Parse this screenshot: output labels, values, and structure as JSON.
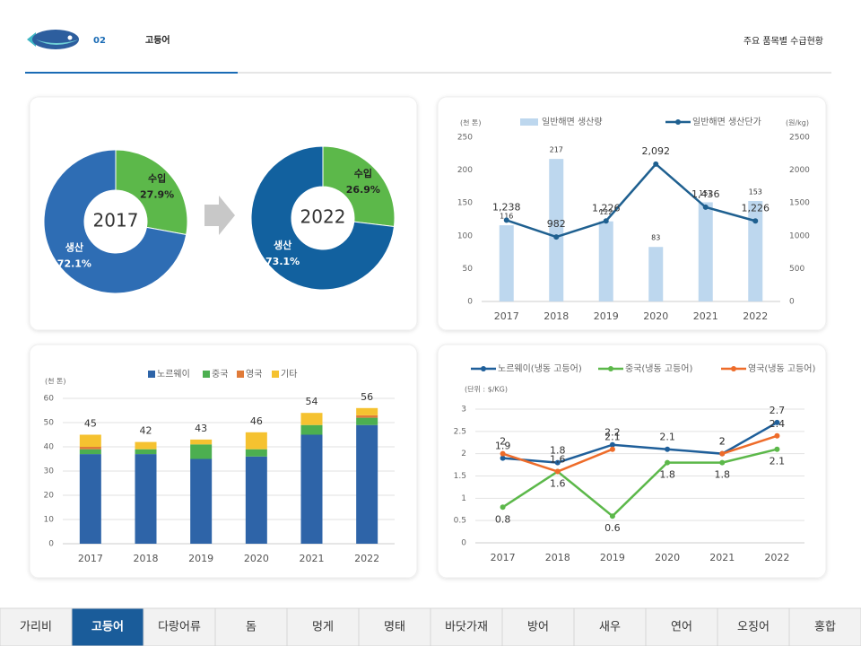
{
  "header": {
    "number": "02",
    "title": "고등어",
    "subtitle": "주요 품목별 수급현황"
  },
  "chart_data": [
    {
      "type": "pie",
      "center_label": "2017",
      "categories": [
        "수입",
        "생산"
      ],
      "values": [
        27.9,
        72.1
      ],
      "value_labels": [
        "27.9%",
        "72.1%"
      ],
      "colors": [
        "#5cb84a",
        "#2e6db4"
      ]
    },
    {
      "type": "pie",
      "center_label": "2022",
      "categories": [
        "수입",
        "생산"
      ],
      "values": [
        26.9,
        73.1
      ],
      "value_labels": [
        "26.9%",
        "73.1%"
      ],
      "colors": [
        "#5cb84a",
        "#12619f"
      ]
    },
    {
      "type": "combo",
      "y_unit": "(천 톤)",
      "y2_unit": "(원/kg)",
      "categories": [
        "2017",
        "2018",
        "2019",
        "2020",
        "2021",
        "2022"
      ],
      "series": [
        {
          "name": "일반해면 생산량",
          "kind": "bar",
          "color": "#bdd7ee",
          "values": [
            116,
            217,
            122,
            83,
            151,
            153
          ]
        },
        {
          "name": "일반해면 생산단가",
          "kind": "line",
          "axis": "y2",
          "color": "#1f6090",
          "values": [
            1238,
            982,
            1226,
            2092,
            1436,
            1226
          ],
          "value_labels": [
            "1,238",
            "982",
            "1,226",
            "2,092",
            "1,436",
            "1,226"
          ]
        }
      ],
      "ylim": [
        0,
        250
      ],
      "yticks": [
        0,
        50,
        100,
        150,
        200,
        250
      ],
      "y2lim": [
        0,
        2500
      ],
      "y2ticks": [
        0,
        500,
        1000,
        1500,
        2000,
        2500
      ],
      "grid": false
    },
    {
      "type": "stacked_bar",
      "y_unit": "(천 톤)",
      "categories": [
        "2017",
        "2018",
        "2019",
        "2020",
        "2021",
        "2022"
      ],
      "series": [
        {
          "name": "노르웨이",
          "color": "#2e64a8",
          "values": [
            37,
            37,
            35,
            36,
            45,
            49
          ]
        },
        {
          "name": "중국",
          "color": "#4caf50",
          "values": [
            2,
            2,
            6,
            3,
            4,
            3
          ]
        },
        {
          "name": "영국",
          "color": "#e07b39",
          "values": [
            1,
            0,
            0,
            0,
            0,
            1
          ]
        },
        {
          "name": "기타",
          "color": "#f5c230",
          "values": [
            5,
            3,
            2,
            7,
            5,
            3
          ]
        }
      ],
      "total_labels": [
        45,
        42,
        43,
        46,
        54,
        56
      ],
      "ylim": [
        0,
        60
      ],
      "yticks": [
        0,
        10,
        20,
        30,
        40,
        50,
        60
      ],
      "grid": true
    },
    {
      "type": "line",
      "y_unit": "(단위 : $/KG)",
      "categories": [
        "2017",
        "2018",
        "2019",
        "2020",
        "2021",
        "2022"
      ],
      "series": [
        {
          "name": "노르웨이(냉동 고등어)",
          "color": "#1f5f9a",
          "values": [
            1.9,
            1.8,
            2.2,
            2.1,
            2,
            2.7
          ]
        },
        {
          "name": "중국(냉동 고등어)",
          "color": "#5cb84a",
          "values": [
            0.8,
            1.6,
            0.6,
            1.8,
            1.8,
            2.1
          ]
        },
        {
          "name": "영국(냉동 고등어)",
          "color": "#ee6c2a",
          "values": [
            2,
            1.6,
            2.1,
            null,
            2,
            2.4
          ]
        }
      ],
      "ylim": [
        0,
        3
      ],
      "yticks": [
        0,
        0.5,
        1,
        1.5,
        2,
        2.5,
        3
      ],
      "grid": true
    }
  ],
  "nav": {
    "items": [
      "가리비",
      "고등어",
      "다랑어류",
      "돔",
      "멍게",
      "명태",
      "바닷가재",
      "방어",
      "새우",
      "연어",
      "오징어",
      "홍합"
    ],
    "active": "고등어"
  }
}
